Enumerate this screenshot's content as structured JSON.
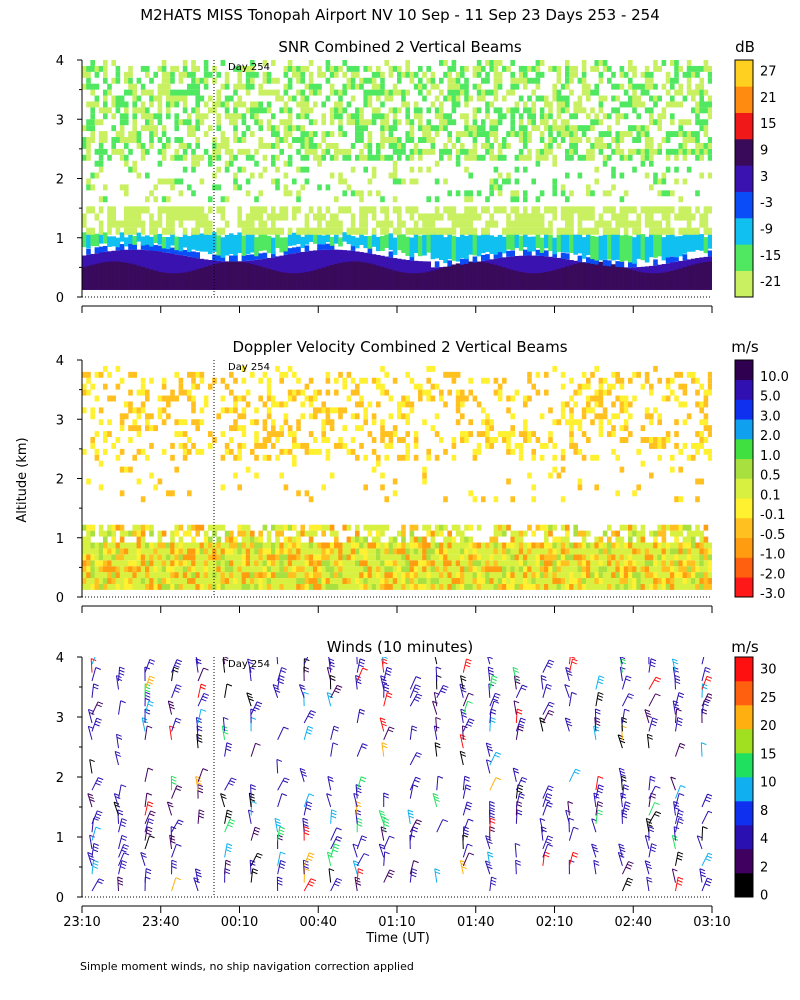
{
  "figure": {
    "title": "M2HATS MISS Tonopah Airport NV  10 Sep - 11 Sep 23 Days 253 - 254",
    "ylabel": "Altitude (km)",
    "xlabel": "Time (UT)",
    "footnote": "Simple moment winds, no ship navigation correction applied",
    "day_marker_label": "Day 254"
  },
  "chart_data": [
    {
      "type": "heatmap",
      "title": "SNR Combined 2 Vertical Beams",
      "unit": "dB",
      "ylim": [
        0,
        4
      ],
      "yticks": [
        "0",
        "1",
        "2",
        "3",
        "4"
      ],
      "xticks": [
        "23:10",
        "23:40",
        "00:10",
        "00:40",
        "01:10",
        "01:40",
        "02:10",
        "02:40",
        "03:10"
      ],
      "colorbar": {
        "labels": [
          "-21",
          "-15",
          "-9",
          "-3",
          "3",
          "9",
          "15",
          "21",
          "27"
        ],
        "colors": [
          "#c8f060",
          "#50e860",
          "#10c0f0",
          "#0a4df8",
          "#3a12b0",
          "#3a0a5a",
          "#f01818",
          "#ff8c10",
          "#ffd020"
        ]
      },
      "day_marker_time": "00:00",
      "layers": [
        {
          "altitude_km": [
            0.1,
            0.7
          ],
          "color": "#2a10a0",
          "coverage": "continuous"
        },
        {
          "altitude_km": [
            0.7,
            1.1
          ],
          "color": "#10c0f0",
          "coverage": "continuous"
        },
        {
          "altitude_km": [
            1.1,
            1.5
          ],
          "color": "#c8f060",
          "coverage": "patchy"
        },
        {
          "altitude_km": [
            2.3,
            3.9
          ],
          "color": "#50e860",
          "coverage": "patchy"
        }
      ]
    },
    {
      "type": "heatmap",
      "title": "Doppler Velocity Combined 2 Vertical Beams",
      "unit": "m/s",
      "ylim": [
        0,
        4
      ],
      "yticks": [
        "0",
        "1",
        "2",
        "3",
        "4"
      ],
      "colorbar": {
        "labels": [
          "-3.0",
          "-2.0",
          "-1.0",
          "-0.5",
          "-0.1",
          "0.1",
          "0.5",
          "1.0",
          "2.0",
          "3.0",
          "5.0",
          "10.0"
        ],
        "colors": [
          "#ff1818",
          "#ff6010",
          "#ff9c10",
          "#ffc020",
          "#fff030",
          "#d8f040",
          "#a8e040",
          "#40e040",
          "#10a0f0",
          "#1030f0",
          "#3010b0",
          "#300050"
        ]
      },
      "day_marker_time": "00:00",
      "layers": [
        {
          "altitude_km": [
            0.1,
            1.2
          ],
          "color": "#d8f040",
          "coverage": "continuous"
        },
        {
          "altitude_km": [
            2.3,
            3.8
          ],
          "color": "#ffc020",
          "coverage": "patchy"
        }
      ]
    },
    {
      "type": "scatter",
      "title": "Winds (10 minutes)",
      "unit": "m/s",
      "ylim": [
        0,
        4
      ],
      "yticks": [
        "0",
        "1",
        "2",
        "3",
        "4"
      ],
      "colorbar": {
        "labels": [
          "0",
          "2",
          "4",
          "8",
          "10",
          "15",
          "20",
          "25",
          "30"
        ],
        "colors": [
          "#000000",
          "#400060",
          "#2a10b0",
          "#1030f0",
          "#10b0f0",
          "#20e060",
          "#a0e020",
          "#ffb010",
          "#ff6010",
          "#ff1010"
        ]
      },
      "day_marker_time": "00:00"
    }
  ]
}
